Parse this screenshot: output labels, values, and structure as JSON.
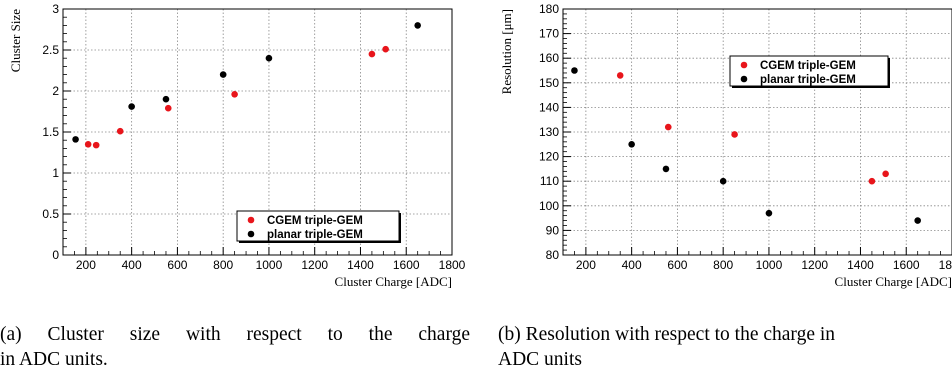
{
  "captions": {
    "a_line1": "(a) Cluster size with respect to the charge",
    "a_line2": "in ADC units.",
    "b_line1": "(b) Resolution with respect to the charge in",
    "b_line2": "ADC units"
  },
  "chart_data": [
    {
      "type": "scatter",
      "title": "",
      "xlabel": "Cluster Charge [ADC]",
      "ylabel": "Cluster Size",
      "xlim": [
        100,
        1800
      ],
      "ylim": [
        0,
        3
      ],
      "xticks": [
        200,
        400,
        600,
        800,
        1000,
        1200,
        1400,
        1600,
        1800
      ],
      "xtick_labels": [
        "200",
        "400",
        "600",
        "800",
        "1000",
        "1200",
        "1400",
        "1600",
        "1800"
      ],
      "yticks": [
        0,
        0.5,
        1,
        1.5,
        2,
        2.5,
        3
      ],
      "ytick_labels": [
        "0",
        "0.5",
        "1",
        "1.5",
        "2",
        "2.5",
        "3"
      ],
      "grid": true,
      "legend": "bottom-right",
      "series": [
        {
          "name": "CGEM triple-GEM",
          "color": "#e8151b",
          "x": [
            210,
            245,
            350,
            560,
            850,
            1450,
            1510
          ],
          "y": [
            1.35,
            1.34,
            1.51,
            1.79,
            1.96,
            2.45,
            2.51
          ]
        },
        {
          "name": "planar triple-GEM",
          "color": "#000000",
          "x": [
            155,
            400,
            550,
            800,
            1000,
            1650
          ],
          "y": [
            1.41,
            1.81,
            1.9,
            2.2,
            2.4,
            2.8
          ]
        }
      ]
    },
    {
      "type": "scatter",
      "title": "",
      "xlabel": "Cluster Charge [ADC]",
      "ylabel": "Resolution [μm]",
      "xlim": [
        100,
        1800
      ],
      "ylim": [
        80,
        180
      ],
      "xticks": [
        200,
        400,
        600,
        800,
        1000,
        1200,
        1400,
        1600,
        1800
      ],
      "xtick_labels": [
        "200",
        "400",
        "600",
        "800",
        "1000",
        "1200",
        "1400",
        "1600",
        "1800"
      ],
      "yticks": [
        80,
        90,
        100,
        110,
        120,
        130,
        140,
        150,
        160,
        170,
        180
      ],
      "ytick_labels": [
        "80",
        "90",
        "100",
        "110",
        "120",
        "130",
        "140",
        "150",
        "160",
        "170",
        "180"
      ],
      "grid": true,
      "legend": "top-right",
      "series": [
        {
          "name": "CGEM triple-GEM",
          "color": "#e8151b",
          "x": [
            350,
            560,
            850,
            1450,
            1510
          ],
          "y": [
            153,
            132,
            129,
            110,
            113
          ]
        },
        {
          "name": "planar triple-GEM",
          "color": "#000000",
          "x": [
            150,
            400,
            550,
            800,
            1000,
            1650
          ],
          "y": [
            155,
            125,
            115,
            110,
            97,
            94
          ]
        }
      ]
    }
  ]
}
